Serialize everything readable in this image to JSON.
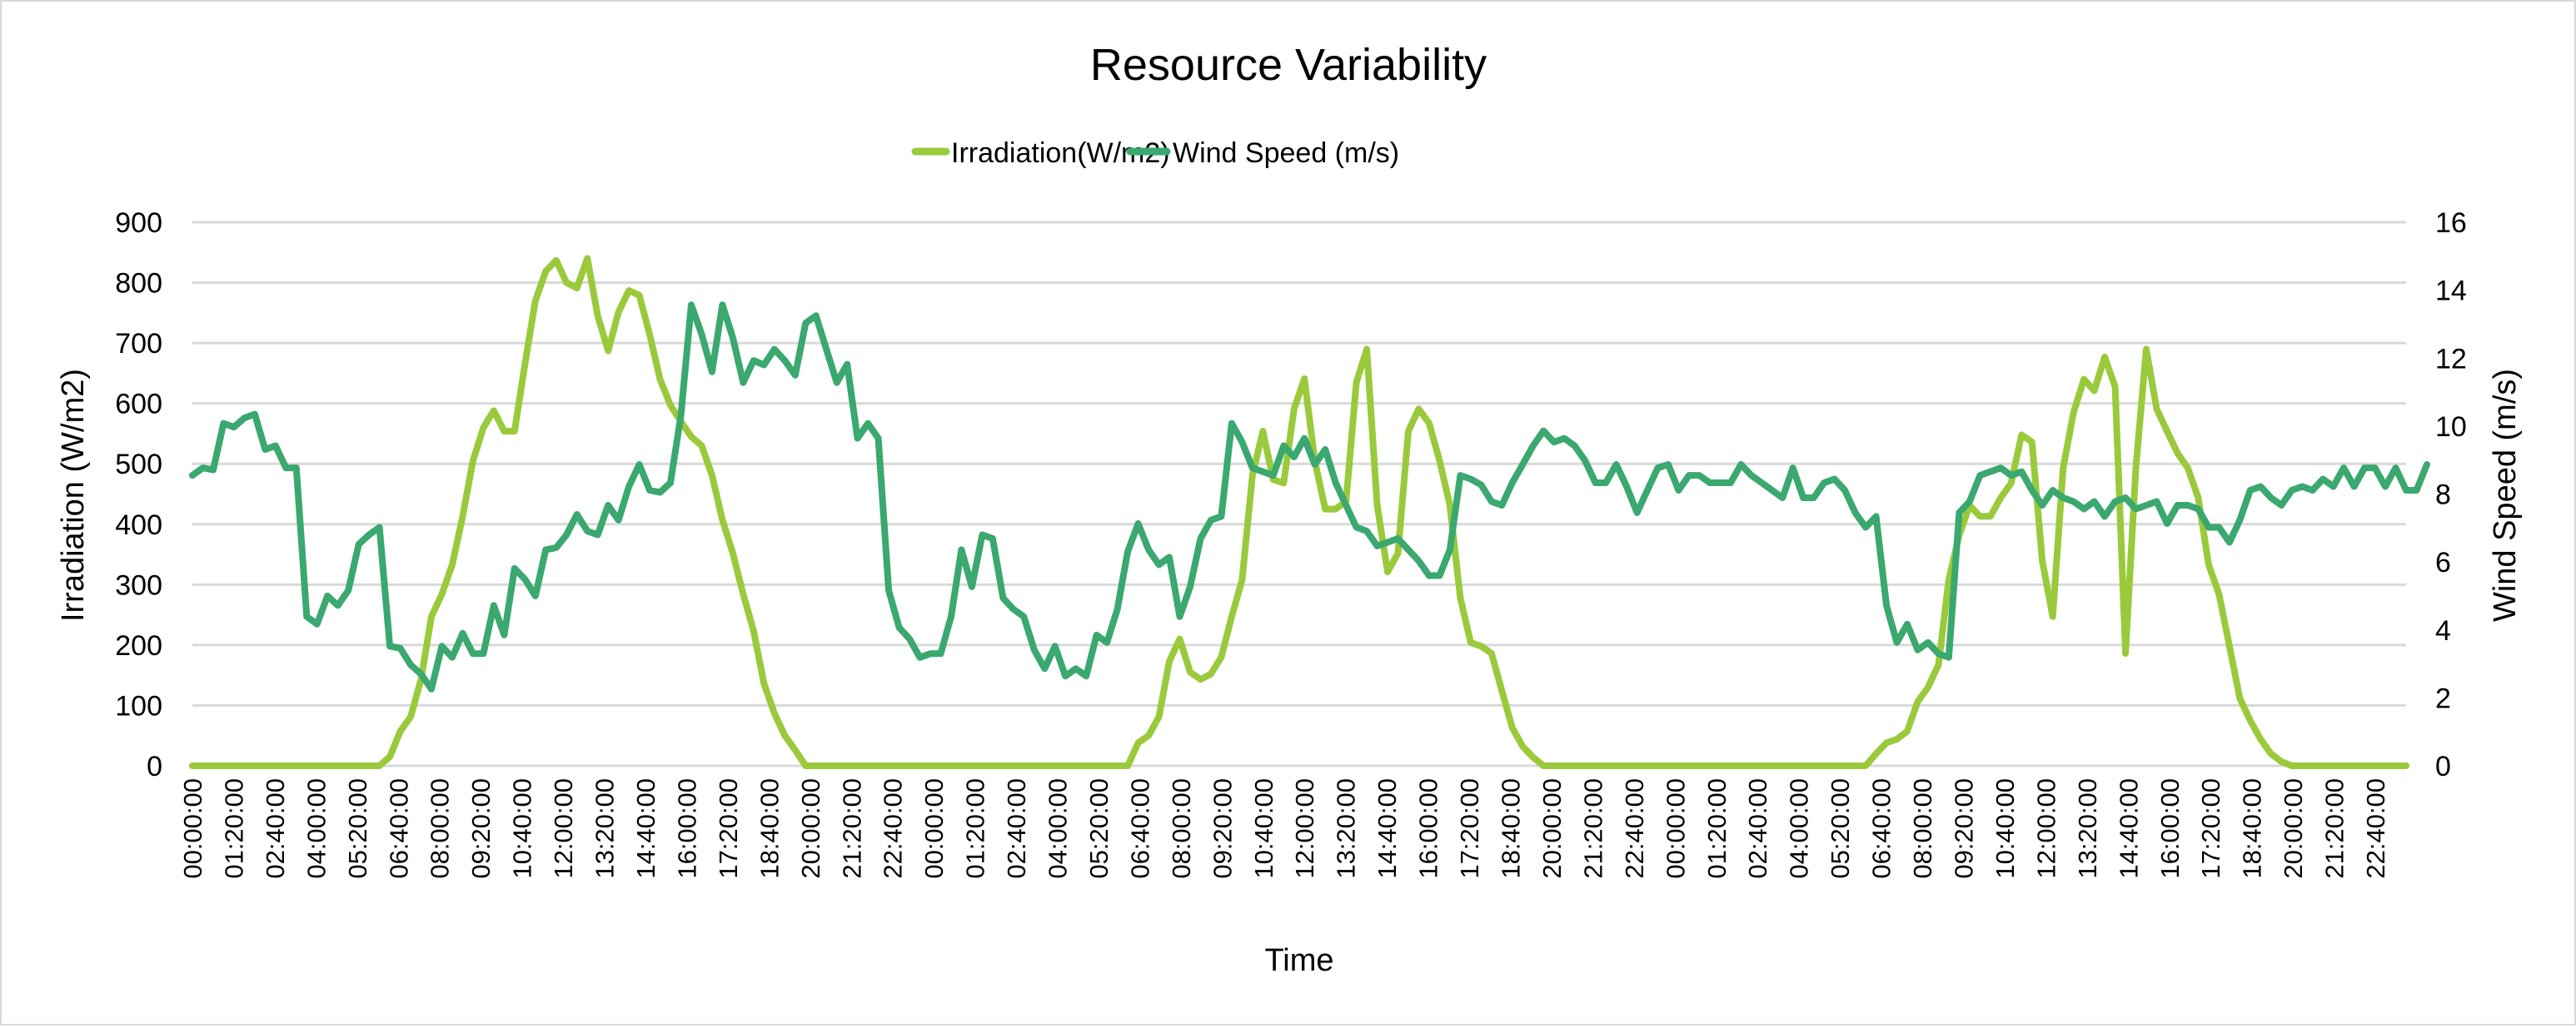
{
  "chart_data": {
    "type": "line",
    "title": "Resource Variability",
    "xlabel": "Time",
    "ylabel": "Irradiation (W/m2)",
    "y2label": "Wind Speed (m/s)",
    "ylim": [
      0,
      900
    ],
    "y_ticks": [
      0,
      100,
      200,
      300,
      400,
      500,
      600,
      700,
      800,
      900
    ],
    "y2lim": [
      0,
      16
    ],
    "y2_ticks": [
      0,
      2,
      4,
      6,
      8,
      10,
      12,
      14,
      16
    ],
    "grid": true,
    "legend": "top",
    "x_ticks": [
      "00:00:00",
      "01:20:00",
      "02:40:00",
      "04:00:00",
      "05:20:00",
      "06:40:00",
      "08:00:00",
      "09:20:00",
      "10:40:00",
      "12:00:00",
      "13:20:00",
      "14:40:00",
      "16:00:00",
      "17:20:00",
      "18:40:00",
      "20:00:00",
      "21:20:00",
      "22:40:00",
      "00:00:00",
      "01:20:00",
      "02:40:00",
      "04:00:00",
      "05:20:00",
      "06:40:00",
      "08:00:00",
      "09:20:00",
      "10:40:00",
      "12:00:00",
      "13:20:00",
      "14:40:00",
      "16:00:00",
      "17:20:00",
      "18:40:00",
      "20:00:00",
      "21:20:00",
      "22:40:00",
      "00:00:00",
      "01:20:00",
      "02:40:00",
      "04:00:00",
      "05:20:00",
      "06:40:00",
      "08:00:00",
      "09:20:00",
      "10:40:00",
      "12:00:00",
      "13:20:00",
      "14:40:00",
      "16:00:00",
      "17:20:00",
      "18:40:00",
      "20:00:00",
      "21:20:00",
      "22:40:00"
    ],
    "x_interval_minutes": 20,
    "series": [
      {
        "name": "Irradiation(W/m2)",
        "axis": "left",
        "color": "#9ACA3C",
        "values": [
          0,
          0,
          0,
          0,
          0,
          0,
          0,
          0,
          0,
          0,
          0,
          0,
          0,
          0,
          0,
          0,
          0,
          0,
          0,
          15,
          57,
          81,
          143,
          247,
          284,
          333,
          413,
          505,
          560,
          588,
          554,
          554,
          665,
          770,
          819,
          837,
          800,
          791,
          840,
          745,
          687,
          751,
          787,
          779,
          714,
          640,
          597,
          570,
          545,
          530,
          481,
          407,
          352,
          284,
          223,
          136,
          87,
          50,
          26,
          0,
          0,
          0,
          0,
          0,
          0,
          0,
          0,
          0,
          0,
          0,
          0,
          0,
          0,
          0,
          0,
          0,
          0,
          0,
          0,
          0,
          0,
          0,
          0,
          0,
          0,
          0,
          0,
          0,
          0,
          0,
          0,
          38,
          50,
          81,
          173,
          210,
          155,
          143,
          152,
          180,
          247,
          308,
          481,
          554,
          474,
          468,
          591,
          641,
          505,
          425,
          425,
          438,
          635,
          690,
          431,
          321,
          352,
          554,
          591,
          567,
          505,
          431,
          278,
          204,
          198,
          186,
          124,
          63,
          32,
          14,
          0,
          0,
          0,
          0,
          0,
          0,
          0,
          0,
          0,
          0,
          0,
          0,
          0,
          0,
          0,
          0,
          0,
          0,
          0,
          0,
          0,
          0,
          0,
          0,
          0,
          0,
          0,
          0,
          0,
          0,
          0,
          0,
          20,
          38,
          44,
          57,
          106,
          130,
          167,
          308,
          382,
          431,
          413,
          413,
          444,
          468,
          548,
          536,
          339,
          247,
          493,
          585,
          640,
          621,
          677,
          628,
          186,
          493,
          690,
          591,
          554,
          518,
          493,
          444,
          333,
          284,
          198,
          112,
          75,
          44,
          20,
          7,
          0,
          0,
          0,
          0,
          0,
          0,
          0,
          0,
          0,
          0,
          0,
          0
        ]
      },
      {
        "name": "Wind Speed (m/s)",
        "axis": "right",
        "color": "#3AA86F",
        "values": [
          8.55,
          8.77,
          8.71,
          10.08,
          9.97,
          10.24,
          10.35,
          9.31,
          9.42,
          8.77,
          8.77,
          4.39,
          4.17,
          5.0,
          4.72,
          5.16,
          6.52,
          6.8,
          7.02,
          3.52,
          3.46,
          2.97,
          2.7,
          2.26,
          3.52,
          3.19,
          3.9,
          3.3,
          3.3,
          4.72,
          3.85,
          5.81,
          5.49,
          5.0,
          6.36,
          6.42,
          6.8,
          7.4,
          6.91,
          6.8,
          7.67,
          7.23,
          8.22,
          8.87,
          8.11,
          8.05,
          8.33,
          10.3,
          13.57,
          12.7,
          11.6,
          13.57,
          12.6,
          11.28,
          11.93,
          11.8,
          12.26,
          11.93,
          11.5,
          13.03,
          13.25,
          12.26,
          11.28,
          11.82,
          9.64,
          10.08,
          9.64,
          5.16,
          4.07,
          3.74,
          3.19,
          3.3,
          3.3,
          4.39,
          6.36,
          5.27,
          6.8,
          6.69,
          4.94,
          4.61,
          4.39,
          3.41,
          2.86,
          3.52,
          2.64,
          2.86,
          2.64,
          3.85,
          3.63,
          4.61,
          6.31,
          7.13,
          6.36,
          5.92,
          6.14,
          4.39,
          5.27,
          6.69,
          7.23,
          7.34,
          10.08,
          9.53,
          8.77,
          8.66,
          8.55,
          9.42,
          9.09,
          9.64,
          8.87,
          9.31,
          8.33,
          7.67,
          7.02,
          6.91,
          6.47,
          6.58,
          6.69,
          6.36,
          6.03,
          5.6,
          5.6,
          6.36,
          8.55,
          8.44,
          8.27,
          7.78,
          7.67,
          8.33,
          8.87,
          9.42,
          9.86,
          9.53,
          9.64,
          9.42,
          8.98,
          8.33,
          8.33,
          8.87,
          8.22,
          7.45,
          8.11,
          8.77,
          8.87,
          8.11,
          8.55,
          8.55,
          8.33,
          8.33,
          8.33,
          8.87,
          8.55,
          8.33,
          8.11,
          7.89,
          8.77,
          7.89,
          7.89,
          8.33,
          8.44,
          8.11,
          7.45,
          7.02,
          7.34,
          4.72,
          3.63,
          4.17,
          3.41,
          3.63,
          3.3,
          3.19,
          7.45,
          7.78,
          8.55,
          8.66,
          8.77,
          8.55,
          8.66,
          8.11,
          7.67,
          8.11,
          7.89,
          7.78,
          7.56,
          7.78,
          7.34,
          7.78,
          7.89,
          7.56,
          7.67,
          7.78,
          7.13,
          7.67,
          7.67,
          7.56,
          7.02,
          7.02,
          6.58,
          7.23,
          8.11,
          8.22,
          7.89,
          7.67,
          8.11,
          8.22,
          8.11,
          8.44,
          8.22,
          8.77,
          8.22,
          8.77,
          8.77,
          8.22,
          8.77,
          8.11,
          8.11,
          8.87
        ]
      }
    ]
  }
}
